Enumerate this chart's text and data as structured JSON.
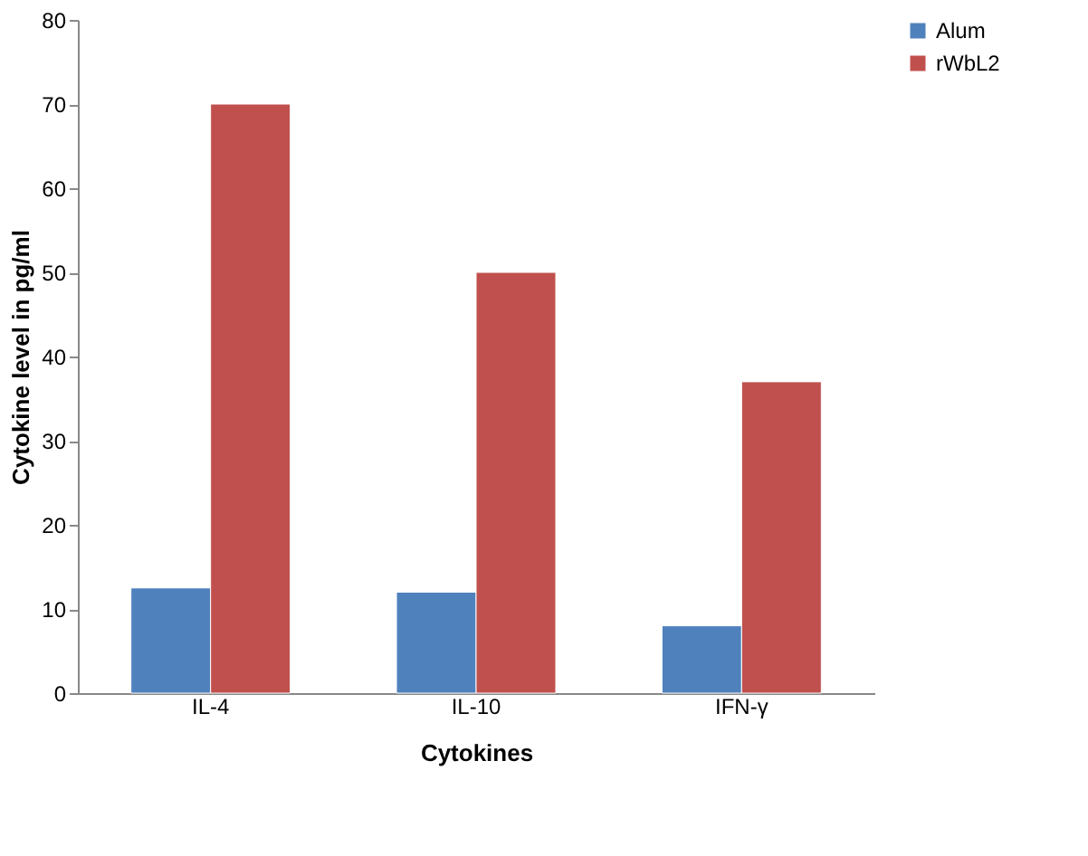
{
  "chart_data": {
    "type": "bar",
    "xlabel": "Cytokines",
    "ylabel": "Cytokine level in pg/ml",
    "categories": [
      "IL-4",
      "IL-10",
      "IFN-γ"
    ],
    "series": [
      {
        "name": "Alum",
        "color": "#4f81bd",
        "values": [
          12.5,
          12,
          8
        ]
      },
      {
        "name": "rWbL2",
        "color": "#c0504d",
        "values": [
          70,
          50,
          37
        ]
      }
    ],
    "ylim": [
      0,
      80
    ],
    "yticks": [
      0,
      10,
      20,
      30,
      40,
      50,
      60,
      70,
      80
    ],
    "grid": false,
    "legend": "right"
  }
}
